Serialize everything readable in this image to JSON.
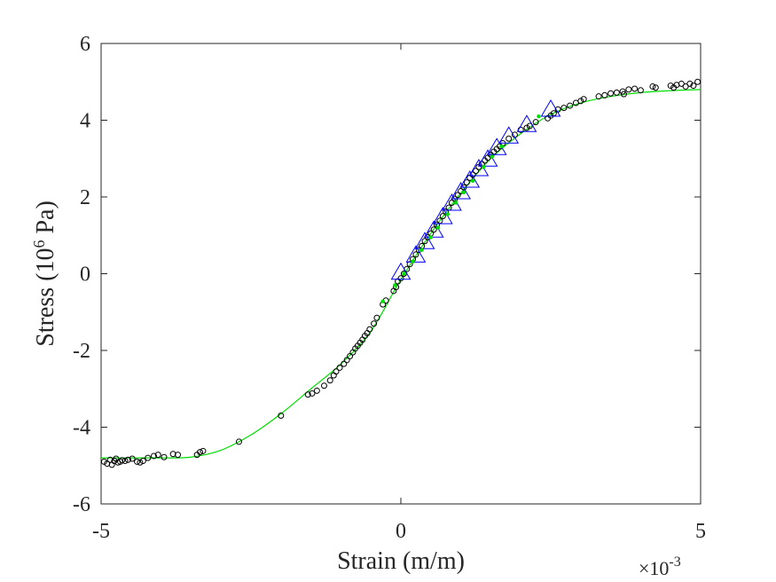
{
  "chart_data": {
    "type": "scatter",
    "title": "",
    "xlabel": "Strain (m/m)",
    "ylabel_parts": {
      "pre": "Stress (10",
      "sup": "6",
      "post": " Pa)"
    },
    "x_exponent_label": {
      "base": "×10",
      "sup": "-3"
    },
    "xlim": [
      -5,
      5
    ],
    "ylim": [
      -6,
      6
    ],
    "x_ticks": [
      -5,
      0,
      5
    ],
    "y_ticks": [
      -6,
      -4,
      -2,
      0,
      2,
      4,
      6
    ],
    "x_tick_labels": [
      "-5",
      "0",
      "5"
    ],
    "y_tick_labels": [
      "-6",
      "-4",
      "-2",
      "0",
      "2",
      "4",
      "6"
    ],
    "grid": false,
    "colors": {
      "circles": "#000000",
      "fit_line": "#00dd00",
      "triangles": "#0000ff",
      "axes": "#262626"
    },
    "series": [
      {
        "marker": "circle-open",
        "x": [
          -4.95,
          -4.9,
          -4.85,
          -4.82,
          -4.78,
          -4.75,
          -4.72,
          -4.68,
          -4.65,
          -4.6,
          -4.55,
          -4.48,
          -4.4,
          -4.35,
          -4.3,
          -4.22,
          -4.12,
          -4.05,
          -3.95,
          -3.8,
          -3.72,
          -3.4,
          -3.35,
          -3.3,
          -2.7,
          -2.0,
          -1.55,
          -1.48,
          -1.4,
          -1.28,
          -1.18,
          -1.12,
          -1.08,
          -1.02,
          -0.95,
          -0.9,
          -0.85,
          -0.8,
          -0.76,
          -0.72,
          -0.68,
          -0.64,
          -0.6,
          -0.56,
          -0.52,
          -0.45,
          -0.4,
          -0.3,
          -0.25,
          -0.12,
          -0.08,
          -0.05,
          0.0,
          0.05,
          0.1,
          0.15,
          0.2,
          0.25,
          0.3,
          0.35,
          0.4,
          0.45,
          0.5,
          0.55,
          0.6,
          0.65,
          0.7,
          0.75,
          0.8,
          0.85,
          0.9,
          0.95,
          1.0,
          1.05,
          1.1,
          1.15,
          1.2,
          1.25,
          1.3,
          1.35,
          1.4,
          1.45,
          1.5,
          1.55,
          1.6,
          1.65,
          1.7,
          1.8,
          1.9,
          2.0,
          2.1,
          2.15,
          2.25,
          2.45,
          2.5,
          2.55,
          2.62,
          2.72,
          2.82,
          2.92,
          3.0,
          3.05,
          3.3,
          3.4,
          3.5,
          3.6,
          3.7,
          3.72,
          3.8,
          3.9,
          4.0,
          4.2,
          4.25,
          4.5,
          4.55,
          4.6,
          4.68,
          4.75,
          4.82,
          4.88,
          4.95
        ],
        "y": [
          -4.9,
          -4.95,
          -4.85,
          -4.98,
          -4.88,
          -4.82,
          -4.92,
          -4.9,
          -4.86,
          -4.88,
          -4.85,
          -4.82,
          -4.9,
          -4.92,
          -4.88,
          -4.8,
          -4.75,
          -4.72,
          -4.78,
          -4.7,
          -4.72,
          -4.72,
          -4.65,
          -4.62,
          -4.38,
          -3.7,
          -3.15,
          -3.12,
          -3.05,
          -2.92,
          -2.78,
          -2.65,
          -2.55,
          -2.45,
          -2.35,
          -2.25,
          -2.15,
          -2.05,
          -1.95,
          -1.88,
          -1.8,
          -1.72,
          -1.62,
          -1.55,
          -1.45,
          -1.3,
          -1.15,
          -0.8,
          -0.7,
          -0.45,
          -0.35,
          -0.2,
          -0.12,
          0.0,
          0.12,
          0.25,
          0.38,
          0.5,
          0.62,
          0.72,
          0.85,
          0.95,
          1.05,
          1.15,
          1.28,
          1.38,
          1.5,
          1.62,
          1.72,
          1.85,
          1.95,
          2.05,
          2.15,
          2.25,
          2.38,
          2.5,
          2.58,
          2.68,
          2.78,
          2.86,
          2.95,
          3.02,
          3.1,
          3.18,
          3.25,
          3.32,
          3.4,
          3.52,
          3.62,
          3.75,
          3.8,
          3.85,
          3.95,
          4.05,
          4.12,
          4.18,
          4.28,
          4.32,
          4.38,
          4.45,
          4.5,
          4.55,
          4.62,
          4.65,
          4.7,
          4.72,
          4.75,
          4.68,
          4.8,
          4.82,
          4.78,
          4.88,
          4.85,
          4.9,
          4.85,
          4.92,
          4.95,
          4.88,
          4.95,
          4.9,
          5.0
        ]
      },
      {
        "marker": "triangle-open",
        "x": [
          0.0,
          0.25,
          0.4,
          0.55,
          0.7,
          0.85,
          1.0,
          1.15,
          1.3,
          1.45,
          1.6,
          1.8,
          2.1,
          2.5
        ],
        "y": [
          0.0,
          0.45,
          0.8,
          1.1,
          1.45,
          1.8,
          2.1,
          2.4,
          2.7,
          2.95,
          3.25,
          3.55,
          3.85,
          4.25
        ]
      },
      {
        "marker": "dot-filled",
        "x": [
          -0.3,
          -0.1,
          0.05,
          0.2,
          0.35,
          0.5,
          0.62,
          0.78,
          0.92,
          1.05,
          1.2,
          1.38,
          1.52,
          1.68,
          2.3
        ],
        "y": [
          -0.72,
          -0.3,
          0.0,
          0.32,
          0.62,
          0.95,
          1.2,
          1.55,
          1.85,
          2.12,
          2.42,
          2.78,
          3.05,
          3.32,
          4.1
        ]
      },
      {
        "marker": "line",
        "x": [
          -5,
          -4.5,
          -4,
          -3.5,
          -3,
          -2.5,
          -2,
          -1.5,
          -1,
          -0.5,
          0,
          0.5,
          1,
          1.5,
          2,
          2.5,
          3,
          3.5,
          4,
          4.5,
          5
        ],
        "y": [
          -4.8,
          -4.8,
          -4.8,
          -4.78,
          -4.6,
          -4.2,
          -3.65,
          -3.0,
          -2.35,
          -1.5,
          -0.15,
          1.05,
          2.1,
          3.0,
          3.65,
          4.15,
          4.45,
          4.62,
          4.72,
          4.77,
          4.8
        ]
      }
    ]
  }
}
